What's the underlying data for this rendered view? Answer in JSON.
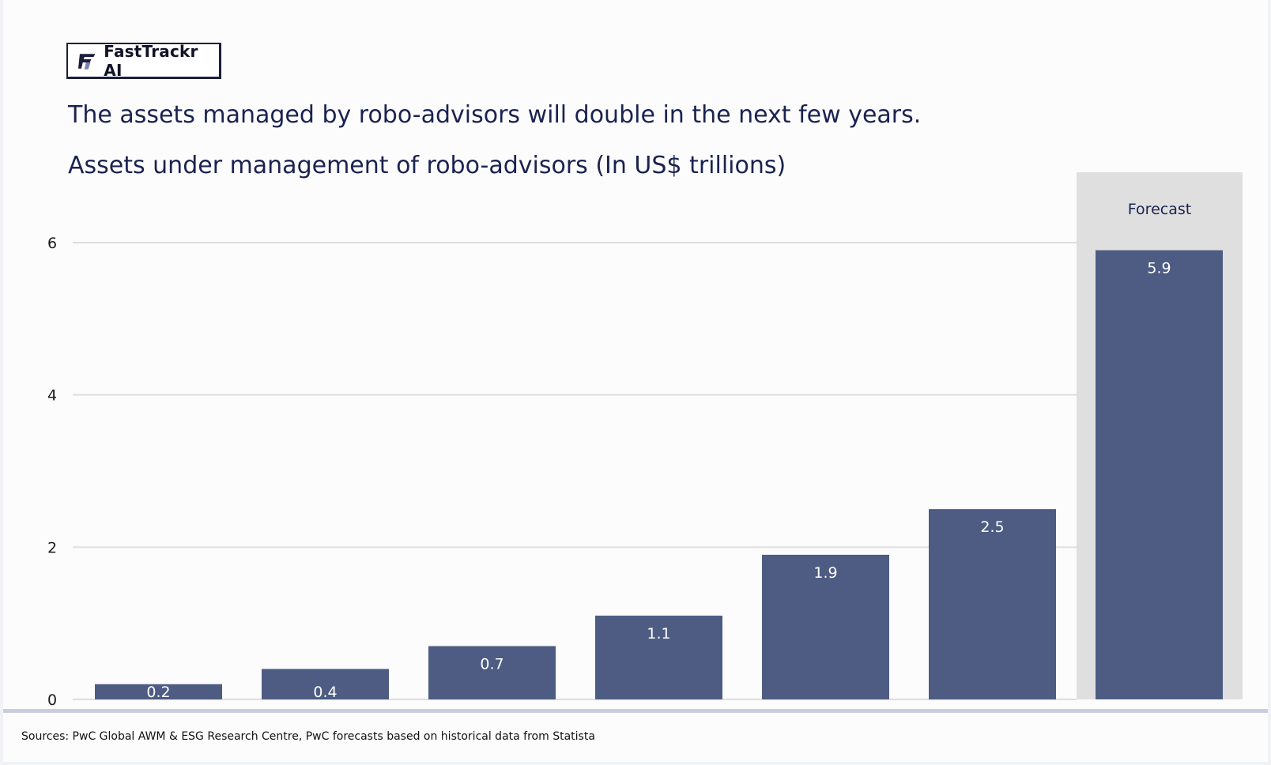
{
  "brand": {
    "name": "FastTrackr AI",
    "icon": "fasttrackr-logo-icon"
  },
  "headline": "The assets managed by robo-advisors will double in the next few years.",
  "sources": "Sources: PwC Global AWM & ESG Research Centre, PwC forecasts based on historical data from Statista",
  "colors": {
    "bar": "#4e5c83",
    "forecast_band": "#dfdfdf",
    "grid": "#dedede",
    "text": "#1a2350"
  },
  "chart_data": {
    "type": "bar",
    "title": "Assets under management of robo-advisors (In US$ trillions)",
    "categories": [
      "",
      "",
      "",
      "",
      "",
      "",
      ""
    ],
    "values": [
      0.2,
      0.4,
      0.7,
      1.1,
      1.9,
      2.5,
      5.9
    ],
    "data_labels": [
      "0.2",
      "0.4",
      "0.7",
      "1.1",
      "1.9",
      "2.5",
      "5.9"
    ],
    "yticks": [
      "0",
      "2",
      "4",
      "6"
    ],
    "ylim": [
      0,
      6
    ],
    "grid": true,
    "legend": "none",
    "forecast": {
      "label": "Forecast",
      "start_index": 6
    }
  }
}
